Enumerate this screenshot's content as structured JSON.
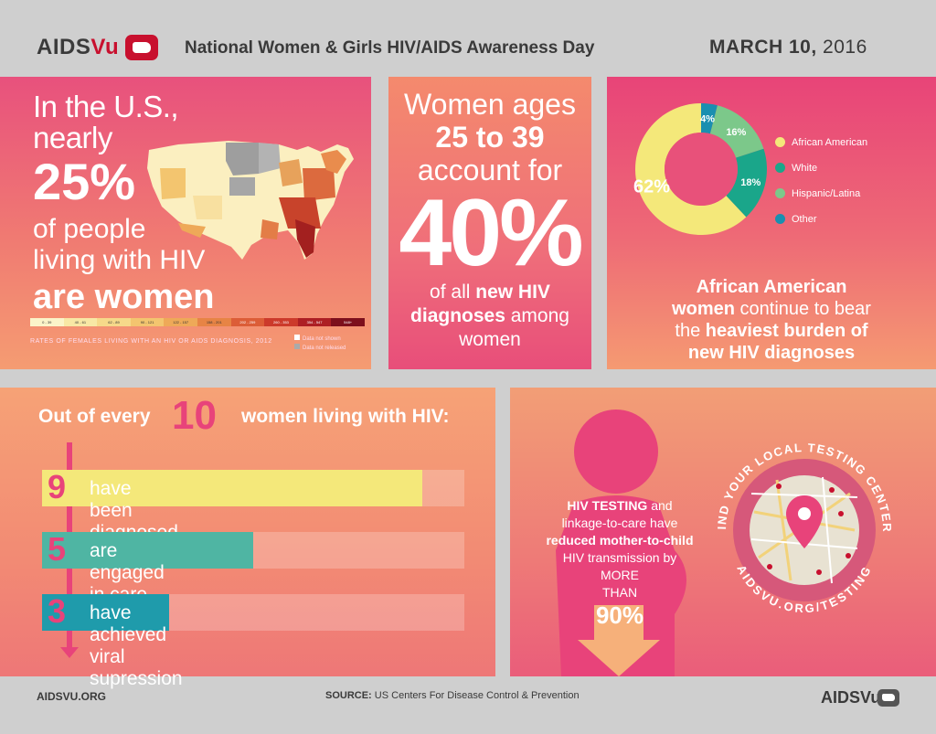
{
  "header": {
    "logo_prefix": "AIDS",
    "logo_suffix": "Vu",
    "title": "National Women & Girls HIV/AIDS Awareness Day",
    "date_main": "MARCH 10,",
    "date_year": "2016"
  },
  "panel1": {
    "line1": "In the U.S.,",
    "line2": "nearly",
    "line3": "25%",
    "line4": "of people",
    "line5": "living with HIV",
    "line6": "are women",
    "legend": [
      "0 - 39",
      "40 - 61",
      "62 - 89",
      "90 - 121",
      "122 - 157",
      "158 - 201",
      "202 - 259",
      "260 - 353",
      "354 - 547",
      "548+"
    ],
    "legend_colors": [
      "#fbf4c9",
      "#f8e8a5",
      "#f6d98a",
      "#f3c56f",
      "#eea958",
      "#e78445",
      "#dc5d37",
      "#cc3a2b",
      "#ad1f24",
      "#7d0f1c"
    ],
    "caption": "RATES OF FEMALES LIVING WITH AN HIV OR AIDS DIAGNOSIS, 2012",
    "note1": "Data not shown",
    "note2": "Data not released"
  },
  "panel2": {
    "line1": "Women ages",
    "line2": "25 to 39",
    "line3": "account for",
    "line4": "40%",
    "line5a": "of all",
    "line5b": "new HIV",
    "line6a": "diagnoses",
    "line6b": "among",
    "line7": "women"
  },
  "panel3": {
    "chart_data": {
      "type": "pie",
      "categories": [
        "African American",
        "White",
        "Hispanic/Latina",
        "Other"
      ],
      "values": [
        62,
        18,
        16,
        4
      ],
      "colors": [
        "#f4e87a",
        "#1aa68a",
        "#7cc88a",
        "#1a8fb0"
      ],
      "labels": [
        "62%",
        "18%",
        "16%",
        "4%"
      ]
    },
    "text1": "African American",
    "text2a": "women",
    "text2b": "continue to bear",
    "text3a": "the",
    "text3b": "heaviest burden of",
    "text4": "new HIV diagnoses"
  },
  "panel4": {
    "head_a": "Out of every",
    "head_num": "10",
    "head_b": "women living with HIV:",
    "rows": [
      {
        "num": "9",
        "label": "have been diagnosed",
        "frac": 0.9,
        "color": "#f4e87a"
      },
      {
        "num": "5",
        "label": "are engaged in care",
        "frac": 0.5,
        "color": "#4fb5a3"
      },
      {
        "num": "3",
        "label": "have achieved viral supression",
        "frac": 0.3,
        "color": "#1f9bab"
      }
    ]
  },
  "panel5": {
    "t1a": "HIV TESTING",
    "t1b": "and",
    "t2": "linkage-to-care have",
    "t3": "reduced mother-to-child",
    "t4": "HIV transmission by",
    "t5": "MORE",
    "t6": "THAN",
    "t7": "90%",
    "ring_top": "FIND YOUR LOCAL TESTING CENTER:",
    "ring_bottom": "AIDSVU.ORG/TESTING"
  },
  "footer": {
    "left": "AIDSVU.ORG",
    "source_label": "SOURCE:",
    "source_text": "US Centers For Disease Control & Prevention",
    "logo": "AIDSVu"
  }
}
